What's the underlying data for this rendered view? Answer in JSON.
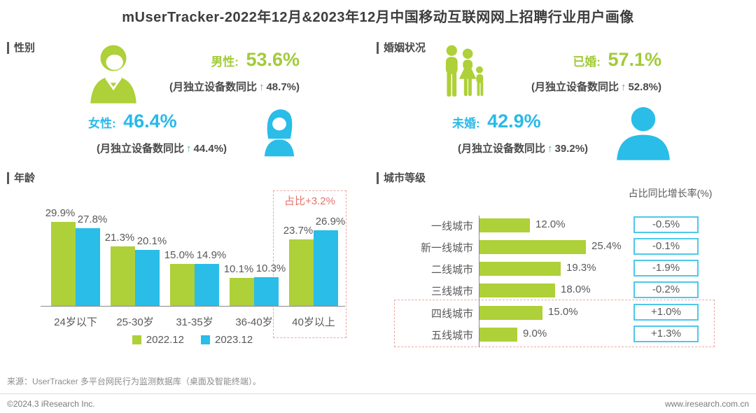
{
  "title": "mUserTracker-2022年12月&2023年12月中国移动互联网网上招聘行业用户画像",
  "colors": {
    "green": "#aed038",
    "blue": "#29bde8",
    "green_text": "#a2cb3a",
    "blue_text": "#29b9e8",
    "arrow_green": "#3bbd7e",
    "dark_text": "#4a4a4a",
    "label_gray": "#595959",
    "highlight_red": "#e4736d",
    "highlight_border": "#eaa9a4",
    "growth_box_border": "#4fc8e9"
  },
  "sections": {
    "gender": {
      "heading": "性别",
      "male": {
        "icon": "male-icon",
        "label": "男性:",
        "value": "53.6%",
        "note": "(月独立设备数同比",
        "arrow": "↑",
        "growth": "48.7%)"
      },
      "female": {
        "icon": "female-icon",
        "label": "女性:",
        "value": "46.4%",
        "note": "(月独立设备数同比",
        "arrow": "↑",
        "growth": "44.4%)"
      }
    },
    "marital": {
      "heading": "婚姻状况",
      "married": {
        "icon": "family-icon",
        "label": "已婚:",
        "value": "57.1%",
        "note": "(月独立设备数同比",
        "arrow": "↑",
        "growth": "52.8%)"
      },
      "unmarried": {
        "icon": "person-icon",
        "label": "未婚:",
        "value": "42.9%",
        "note": "(月独立设备数同比",
        "arrow": "↑",
        "growth": "39.2%)"
      }
    },
    "age": {
      "heading": "年龄"
    },
    "city": {
      "heading": "城市等级"
    }
  },
  "chart_data": [
    {
      "type": "bar",
      "title": "年龄",
      "categories": [
        "24岁以下",
        "25-30岁",
        "31-35岁",
        "36-40岁",
        "40岁以上"
      ],
      "series": [
        {
          "name": "2022.12",
          "color": "#aed038",
          "values": [
            29.9,
            21.3,
            15.0,
            10.1,
            23.7
          ]
        },
        {
          "name": "2023.12",
          "color": "#29bde8",
          "values": [
            27.8,
            20.1,
            14.9,
            10.3,
            26.9
          ]
        }
      ],
      "unit": "%",
      "ylim": [
        0,
        32
      ],
      "grid": false,
      "legend_position": "bottom",
      "annotation": {
        "text": "占比+3.2%",
        "target_category": "40岁以上"
      }
    },
    {
      "type": "bar",
      "orientation": "horizontal",
      "title": "城市等级",
      "value_axis_header": "占比同比增长率(%)",
      "categories": [
        "一线城市",
        "新一线城市",
        "二线城市",
        "三线城市",
        "四线城市",
        "五线城市"
      ],
      "values": [
        12.0,
        25.4,
        19.3,
        18.0,
        15.0,
        9.0
      ],
      "growth_rates": [
        "-0.5%",
        "-0.1%",
        "-1.9%",
        "-0.2%",
        "+1.0%",
        "+1.3%"
      ],
      "highlighted_categories": [
        "四线城市",
        "五线城市"
      ],
      "unit": "%",
      "grid": false
    }
  ],
  "footer": {
    "source": "来源：UserTracker 多平台网民行为监测数据库（桌面及智能终端）。",
    "copyright": "©2024.3 iResearch Inc.",
    "website": "www.iresearch.com.cn"
  }
}
